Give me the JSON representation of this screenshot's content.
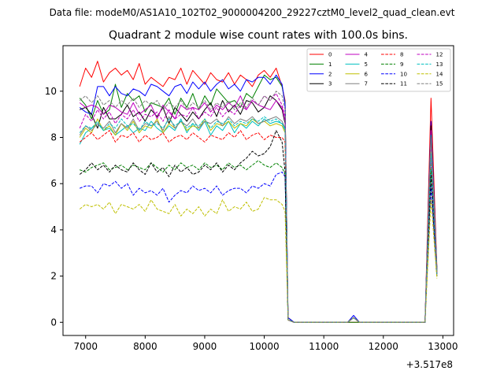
{
  "chart_data": {
    "type": "line",
    "suptitle": "Data file: modeM0/AS1A10_102T02_9000004200_29227cztM0_level2_quad_clean.evt",
    "title": "Quadrant 2 module wise count rates with 100.0s bins.",
    "xlabel": "",
    "ylabel": "",
    "x_offset_label": "+3.517e8",
    "xlim": [
      6620,
      13180
    ],
    "ylim": [
      -0.57,
      11.97
    ],
    "xticks": [
      7000,
      8000,
      9000,
      10000,
      11000,
      12000,
      13000
    ],
    "yticks": [
      0,
      2,
      4,
      6,
      8,
      10
    ],
    "grid": false,
    "legend_position": "top-right",
    "legend_columns": 4,
    "x": [
      6900,
      7000,
      7100,
      7200,
      7300,
      7400,
      7500,
      7600,
      7700,
      7800,
      7900,
      8000,
      8100,
      8200,
      8300,
      8400,
      8500,
      8600,
      8700,
      8800,
      8900,
      9000,
      9100,
      9200,
      9300,
      9400,
      9500,
      9600,
      9700,
      9800,
      9900,
      10000,
      10100,
      10200,
      10300,
      10350,
      10400,
      10500,
      10600,
      10700,
      10800,
      10900,
      11000,
      11100,
      11200,
      11300,
      11400,
      11500,
      11600,
      11700,
      11800,
      11900,
      12000,
      12100,
      12200,
      12300,
      12400,
      12500,
      12600,
      12700,
      12800,
      12900
    ],
    "series": [
      {
        "name": "0",
        "color": "#ff0000",
        "dash": "solid",
        "values": [
          10.2,
          11.0,
          10.6,
          11.3,
          10.4,
          10.8,
          11.0,
          10.7,
          10.9,
          10.5,
          11.2,
          10.3,
          10.6,
          10.4,
          10.2,
          10.6,
          10.5,
          11.0,
          10.3,
          10.9,
          10.6,
          10.3,
          10.8,
          10.5,
          10.4,
          10.8,
          10.3,
          10.7,
          10.5,
          10.2,
          10.7,
          10.9,
          10.6,
          11.0,
          10.2,
          9.6,
          0.2,
          0.0,
          0.0,
          0.0,
          0.0,
          0.0,
          0.0,
          0.0,
          0.0,
          0.0,
          0.0,
          0.0,
          0.0,
          0.0,
          0.0,
          0.0,
          0.0,
          0.0,
          0.0,
          0.0,
          0.0,
          0.0,
          0.0,
          0.0,
          9.7,
          2.4
        ]
      },
      {
        "name": "1",
        "color": "#008000",
        "dash": "solid",
        "values": [
          9.7,
          9.4,
          8.8,
          9.6,
          9.0,
          9.2,
          10.3,
          9.3,
          9.9,
          9.6,
          9.8,
          9.1,
          9.5,
          9.4,
          9.3,
          9.7,
          9.0,
          9.7,
          9.3,
          9.9,
          9.2,
          9.8,
          9.4,
          10.1,
          9.8,
          9.5,
          9.6,
          9.3,
          9.9,
          9.7,
          10.2,
          10.7,
          10.5,
          10.6,
          10.2,
          9.5,
          0.2,
          0.0,
          0.0,
          0.0,
          0.0,
          0.0,
          0.0,
          0.0,
          0.0,
          0.0,
          0.0,
          0.0,
          0.0,
          0.0,
          0.0,
          0.0,
          0.0,
          0.0,
          0.0,
          0.0,
          0.0,
          0.0,
          0.0,
          0.0,
          8.3,
          2.3
        ]
      },
      {
        "name": "2",
        "color": "#0000ff",
        "dash": "solid",
        "values": [
          9.3,
          9.1,
          9.0,
          10.2,
          10.2,
          9.8,
          10.2,
          9.9,
          9.8,
          10.1,
          10.0,
          9.8,
          10.3,
          10.2,
          10.0,
          9.8,
          10.2,
          10.3,
          9.9,
          10.4,
          10.1,
          10.4,
          10.0,
          10.3,
          10.5,
          10.1,
          10.3,
          10.0,
          10.5,
          10.4,
          10.6,
          10.6,
          10.3,
          10.7,
          10.3,
          9.4,
          0.2,
          0.0,
          0.0,
          0.0,
          0.0,
          0.0,
          0.0,
          0.0,
          0.0,
          0.0,
          0.0,
          0.3,
          0.0,
          0.0,
          0.0,
          0.0,
          0.0,
          0.0,
          0.0,
          0.0,
          0.0,
          0.0,
          0.0,
          0.0,
          8.7,
          2.3
        ]
      },
      {
        "name": "3",
        "color": "#000000",
        "dash": "solid",
        "values": [
          9.2,
          9.3,
          9.0,
          8.4,
          9.3,
          8.8,
          8.8,
          9.0,
          9.4,
          8.9,
          9.1,
          8.7,
          9.2,
          8.9,
          9.3,
          8.6,
          9.3,
          9.0,
          8.7,
          9.1,
          8.8,
          9.2,
          9.5,
          8.9,
          9.6,
          9.1,
          9.4,
          9.0,
          9.6,
          9.5,
          9.1,
          9.3,
          9.8,
          9.6,
          9.2,
          8.6,
          0.1,
          0.0,
          0.0,
          0.0,
          0.0,
          0.0,
          0.0,
          0.0,
          0.0,
          0.0,
          0.0,
          0.2,
          0.0,
          0.0,
          0.0,
          0.0,
          0.0,
          0.0,
          0.0,
          0.0,
          0.0,
          0.0,
          0.0,
          0.0,
          8.5,
          2.2
        ]
      },
      {
        "name": "4",
        "color": "#bf00bf",
        "dash": "solid",
        "values": [
          9.5,
          9.3,
          9.4,
          9.3,
          9.0,
          9.4,
          9.3,
          9.1,
          9.0,
          9.5,
          9.0,
          9.2,
          9.4,
          8.8,
          9.4,
          9.1,
          8.8,
          9.4,
          9.2,
          9.3,
          9.2,
          9.5,
          9.1,
          9.4,
          9.2,
          9.5,
          9.3,
          9.8,
          9.2,
          9.6,
          9.4,
          9.3,
          9.2,
          9.6,
          9.3,
          8.7,
          0.1,
          0.0,
          0.0,
          0.0,
          0.0,
          0.0,
          0.0,
          0.0,
          0.0,
          0.0,
          0.0,
          0.2,
          0.0,
          0.0,
          0.0,
          0.0,
          0.0,
          0.0,
          0.0,
          0.0,
          0.0,
          0.0,
          0.0,
          0.0,
          8.3,
          2.2
        ]
      },
      {
        "name": "5",
        "color": "#00bfbf",
        "dash": "solid",
        "values": [
          7.7,
          8.2,
          8.4,
          8.6,
          8.3,
          8.4,
          8.1,
          8.3,
          8.5,
          8.2,
          8.4,
          8.3,
          8.7,
          8.4,
          8.2,
          8.5,
          8.3,
          8.8,
          8.2,
          8.6,
          8.3,
          8.7,
          8.1,
          8.5,
          8.3,
          8.7,
          8.2,
          8.6,
          8.4,
          8.7,
          8.5,
          8.8,
          8.6,
          8.7,
          8.6,
          8.3,
          0.1,
          0.0,
          0.0,
          0.0,
          0.0,
          0.0,
          0.0,
          0.0,
          0.0,
          0.0,
          0.0,
          0.2,
          0.0,
          0.0,
          0.0,
          0.0,
          0.0,
          0.0,
          0.0,
          0.0,
          0.0,
          0.0,
          0.0,
          0.0,
          8.1,
          2.2
        ]
      },
      {
        "name": "6",
        "color": "#bfbf00",
        "dash": "solid",
        "values": [
          8.0,
          8.4,
          8.2,
          8.8,
          8.3,
          8.5,
          8.1,
          8.6,
          8.3,
          8.7,
          8.2,
          8.5,
          8.4,
          8.8,
          8.2,
          8.6,
          8.4,
          8.7,
          8.3,
          8.5,
          8.4,
          8.8,
          8.3,
          8.6,
          8.5,
          8.7,
          8.4,
          8.6,
          8.5,
          8.8,
          8.6,
          8.7,
          8.5,
          8.6,
          8.5,
          8.2,
          0.1,
          0.0,
          0.0,
          0.0,
          0.0,
          0.0,
          0.0,
          0.0,
          0.0,
          0.0,
          0.0,
          0.2,
          0.0,
          0.0,
          0.0,
          0.0,
          0.0,
          0.0,
          0.0,
          0.0,
          0.0,
          0.0,
          0.0,
          0.0,
          7.9,
          2.1
        ]
      },
      {
        "name": "7",
        "color": "#808080",
        "dash": "solid",
        "values": [
          8.1,
          8.5,
          8.3,
          8.6,
          8.4,
          8.7,
          8.2,
          8.6,
          8.4,
          8.8,
          8.3,
          8.6,
          8.5,
          8.7,
          8.3,
          8.9,
          8.4,
          8.7,
          8.5,
          8.8,
          8.4,
          8.7,
          8.6,
          8.8,
          8.5,
          8.9,
          8.6,
          8.8,
          8.7,
          8.9,
          8.6,
          8.7,
          8.8,
          8.9,
          8.7,
          8.4,
          0.1,
          0.0,
          0.0,
          0.0,
          0.0,
          0.0,
          0.0,
          0.0,
          0.0,
          0.0,
          0.0,
          0.2,
          0.0,
          0.0,
          0.0,
          0.0,
          0.0,
          0.0,
          0.0,
          0.0,
          0.0,
          0.0,
          0.0,
          0.0,
          8.0,
          2.2
        ]
      },
      {
        "name": "8",
        "color": "#ff0000",
        "dash": "dashed",
        "values": [
          7.8,
          8.0,
          8.2,
          7.9,
          8.1,
          8.3,
          7.8,
          8.1,
          8.0,
          8.2,
          7.8,
          8.1,
          7.9,
          8.0,
          8.2,
          7.8,
          8.0,
          8.1,
          7.9,
          8.2,
          8.0,
          7.8,
          8.1,
          8.0,
          7.9,
          8.2,
          8.0,
          8.3,
          7.9,
          8.1,
          8.2,
          7.9,
          8.1,
          8.0,
          8.0,
          7.8,
          0.1,
          0.0,
          0.0,
          0.0,
          0.0,
          0.0,
          0.0,
          0.0,
          0.0,
          0.0,
          0.0,
          0.2,
          0.0,
          0.0,
          0.0,
          0.0,
          0.0,
          0.0,
          0.0,
          0.0,
          0.0,
          0.0,
          0.0,
          0.0,
          7.1,
          2.1
        ]
      },
      {
        "name": "9",
        "color": "#008000",
        "dash": "dashed",
        "values": [
          6.6,
          6.5,
          6.7,
          6.8,
          6.9,
          6.6,
          6.7,
          6.8,
          6.6,
          6.8,
          6.7,
          6.6,
          6.9,
          6.7,
          6.5,
          6.8,
          6.6,
          6.9,
          6.7,
          6.8,
          6.6,
          6.9,
          6.7,
          6.8,
          6.6,
          6.9,
          6.7,
          6.8,
          6.6,
          6.8,
          7.0,
          6.8,
          6.7,
          6.9,
          6.7,
          6.4,
          0.1,
          0.0,
          0.0,
          0.0,
          0.0,
          0.0,
          0.0,
          0.0,
          0.0,
          0.0,
          0.0,
          0.2,
          0.0,
          0.0,
          0.0,
          0.0,
          0.0,
          0.0,
          0.0,
          0.0,
          0.0,
          0.0,
          0.0,
          0.0,
          6.6,
          2.0
        ]
      },
      {
        "name": "10",
        "color": "#0000ff",
        "dash": "dashed",
        "values": [
          5.8,
          5.9,
          5.9,
          5.6,
          6.0,
          5.9,
          6.1,
          5.8,
          6.0,
          5.5,
          5.8,
          5.6,
          5.7,
          5.5,
          5.8,
          5.2,
          5.5,
          5.7,
          5.6,
          5.9,
          5.7,
          5.8,
          5.6,
          5.9,
          5.5,
          5.7,
          5.8,
          5.8,
          5.6,
          5.9,
          5.8,
          6.0,
          5.9,
          6.4,
          6.5,
          6.3,
          0.1,
          0.0,
          0.0,
          0.0,
          0.0,
          0.0,
          0.0,
          0.0,
          0.0,
          0.0,
          0.0,
          0.2,
          0.0,
          0.0,
          0.0,
          0.0,
          0.0,
          0.0,
          0.0,
          0.0,
          0.0,
          0.0,
          0.0,
          0.0,
          5.9,
          2.0
        ]
      },
      {
        "name": "11",
        "color": "#000000",
        "dash": "dashed",
        "values": [
          6.4,
          6.6,
          6.9,
          6.6,
          6.8,
          6.5,
          6.8,
          6.6,
          6.5,
          6.9,
          6.6,
          6.4,
          6.9,
          6.5,
          6.7,
          6.3,
          6.8,
          6.5,
          6.7,
          6.4,
          6.5,
          6.8,
          6.6,
          6.9,
          6.5,
          6.8,
          6.6,
          6.9,
          7.1,
          7.4,
          7.2,
          7.3,
          7.6,
          8.3,
          7.8,
          6.5,
          0.1,
          0.0,
          0.0,
          0.0,
          0.0,
          0.0,
          0.0,
          0.0,
          0.0,
          0.0,
          0.0,
          0.2,
          0.0,
          0.0,
          0.0,
          0.0,
          0.0,
          0.0,
          0.0,
          0.0,
          0.0,
          0.0,
          0.0,
          0.0,
          6.4,
          2.0
        ]
      },
      {
        "name": "12",
        "color": "#bf00bf",
        "dash": "dashed",
        "values": [
          8.4,
          9.0,
          8.7,
          9.2,
          8.8,
          9.1,
          8.6,
          9.0,
          8.8,
          9.2,
          8.7,
          9.0,
          8.9,
          9.1,
          8.7,
          9.2,
          8.8,
          9.0,
          8.9,
          9.3,
          8.8,
          9.1,
          8.9,
          9.3,
          8.9,
          9.2,
          9.0,
          9.4,
          9.2,
          9.6,
          9.4,
          9.8,
          9.6,
          9.9,
          9.4,
          8.9,
          0.1,
          0.0,
          0.0,
          0.0,
          0.0,
          0.0,
          0.0,
          0.0,
          0.0,
          0.0,
          0.0,
          0.2,
          0.0,
          0.0,
          0.0,
          0.0,
          0.0,
          0.0,
          0.0,
          0.0,
          0.0,
          0.0,
          0.0,
          0.0,
          7.6,
          2.1
        ]
      },
      {
        "name": "13",
        "color": "#00bfbf",
        "dash": "dashed",
        "values": [
          8.2,
          8.5,
          8.4,
          8.7,
          8.3,
          8.6,
          8.4,
          8.8,
          8.5,
          8.6,
          8.3,
          8.7,
          8.5,
          8.6,
          8.4,
          8.8,
          8.5,
          8.7,
          8.4,
          8.6,
          8.5,
          8.8,
          8.4,
          8.7,
          8.6,
          8.8,
          8.5,
          8.7,
          8.6,
          8.8,
          8.7,
          8.9,
          8.7,
          8.8,
          8.6,
          8.4,
          0.1,
          0.0,
          0.0,
          0.0,
          0.0,
          0.0,
          0.0,
          0.0,
          0.0,
          0.0,
          0.0,
          0.2,
          0.0,
          0.0,
          0.0,
          0.0,
          0.0,
          0.0,
          0.0,
          0.0,
          0.0,
          0.0,
          0.0,
          0.0,
          7.3,
          2.1
        ]
      },
      {
        "name": "14",
        "color": "#bfbf00",
        "dash": "dashed",
        "values": [
          4.9,
          5.1,
          5.0,
          5.1,
          4.9,
          5.2,
          4.7,
          5.1,
          5.0,
          4.9,
          5.1,
          4.8,
          5.3,
          4.9,
          4.8,
          4.7,
          5.1,
          4.6,
          4.9,
          4.7,
          5.0,
          4.6,
          4.9,
          4.7,
          5.3,
          4.8,
          5.0,
          4.9,
          5.2,
          4.8,
          4.9,
          5.4,
          5.3,
          5.3,
          5.1,
          4.8,
          0.1,
          0.0,
          0.0,
          0.0,
          0.0,
          0.0,
          0.0,
          0.0,
          0.0,
          0.0,
          0.0,
          0.2,
          0.0,
          0.0,
          0.0,
          0.0,
          0.0,
          0.0,
          0.0,
          0.0,
          0.0,
          0.0,
          0.0,
          0.0,
          5.3,
          1.9
        ]
      },
      {
        "name": "15",
        "color": "#808080",
        "dash": "dashed",
        "values": [
          9.6,
          9.8,
          9.5,
          9.8,
          9.4,
          9.6,
          9.3,
          9.6,
          9.4,
          9.7,
          9.3,
          9.6,
          9.4,
          9.6,
          9.2,
          9.5,
          9.3,
          9.6,
          9.2,
          9.5,
          9.3,
          9.6,
          9.2,
          9.5,
          9.3,
          9.6,
          9.2,
          9.5,
          9.3,
          9.7,
          9.4,
          9.8,
          9.6,
          10.0,
          9.8,
          9.2,
          0.1,
          0.0,
          0.0,
          0.0,
          0.0,
          0.0,
          0.0,
          0.0,
          0.0,
          0.0,
          0.0,
          0.2,
          0.0,
          0.0,
          0.0,
          0.0,
          0.0,
          0.0,
          0.0,
          0.0,
          0.0,
          0.0,
          0.0,
          0.0,
          8.0,
          2.2
        ]
      }
    ]
  }
}
